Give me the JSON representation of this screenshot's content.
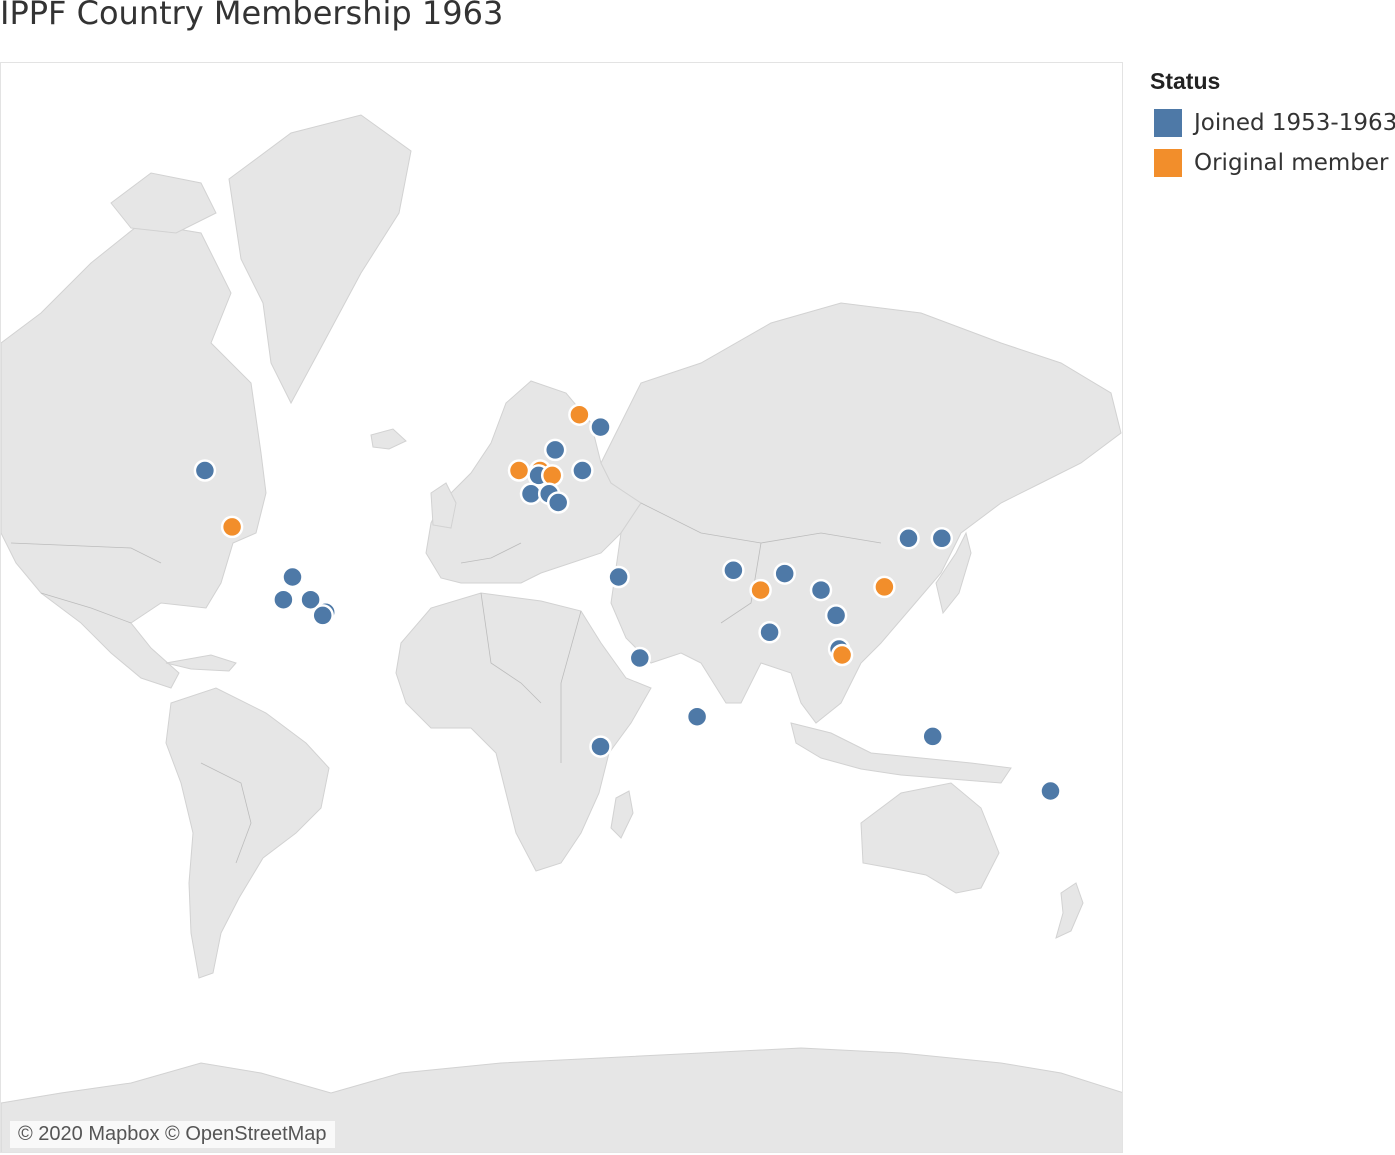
{
  "title": "IPPF Country Membership 1963",
  "attribution": "© 2020 Mapbox © OpenStreetMap",
  "legend": {
    "title": "Status",
    "items": [
      {
        "label": "Joined 1953-1963",
        "color": "#4e79a7"
      },
      {
        "label": "Original  member",
        "color": "#f28e2b"
      }
    ]
  },
  "map_data": {
    "basemap": "world",
    "points": [
      {
        "lon": -106,
        "lat": 52,
        "status": "joined"
      },
      {
        "lon": -97,
        "lat": 39,
        "status": "original"
      },
      {
        "lon": -77,
        "lat": 25,
        "status": "joined"
      },
      {
        "lon": -80,
        "lat": 18,
        "status": "joined"
      },
      {
        "lon": -71,
        "lat": 18,
        "status": "joined"
      },
      {
        "lon": -66,
        "lat": 14,
        "status": "joined"
      },
      {
        "lon": -67,
        "lat": 13,
        "status": "joined"
      },
      {
        "lon": 18,
        "lat": 62,
        "status": "original"
      },
      {
        "lon": 25,
        "lat": 60,
        "status": "joined"
      },
      {
        "lon": 10,
        "lat": 56,
        "status": "joined"
      },
      {
        "lon": -2,
        "lat": 52,
        "status": "original"
      },
      {
        "lon": 5,
        "lat": 52,
        "status": "original"
      },
      {
        "lon": 4.5,
        "lat": 51,
        "status": "joined"
      },
      {
        "lon": 9,
        "lat": 51,
        "status": "original"
      },
      {
        "lon": 19,
        "lat": 52,
        "status": "joined"
      },
      {
        "lon": 2,
        "lat": 47,
        "status": "joined"
      },
      {
        "lon": 8,
        "lat": 47,
        "status": "joined"
      },
      {
        "lon": 11,
        "lat": 45,
        "status": "joined"
      },
      {
        "lon": 31,
        "lat": 25,
        "status": "joined"
      },
      {
        "lon": 38,
        "lat": -1,
        "status": "joined"
      },
      {
        "lon": 25,
        "lat": -29,
        "status": "joined"
      },
      {
        "lon": 57,
        "lat": -20,
        "status": "joined"
      },
      {
        "lon": 69,
        "lat": 27,
        "status": "joined"
      },
      {
        "lon": 78,
        "lat": 21,
        "status": "original"
      },
      {
        "lon": 81,
        "lat": 7.5,
        "status": "joined"
      },
      {
        "lon": 86,
        "lat": 26,
        "status": "joined"
      },
      {
        "lon": 98,
        "lat": 21,
        "status": "joined"
      },
      {
        "lon": 103,
        "lat": 13,
        "status": "joined"
      },
      {
        "lon": 104,
        "lat": 2,
        "status": "joined"
      },
      {
        "lon": 105,
        "lat": 0,
        "status": "original"
      },
      {
        "lon": 119,
        "lat": 22,
        "status": "original"
      },
      {
        "lon": 127,
        "lat": 36,
        "status": "joined"
      },
      {
        "lon": 138,
        "lat": 36,
        "status": "joined"
      },
      {
        "lon": 135,
        "lat": -26,
        "status": "joined"
      },
      {
        "lon": 174,
        "lat": -41,
        "status": "joined"
      }
    ]
  }
}
